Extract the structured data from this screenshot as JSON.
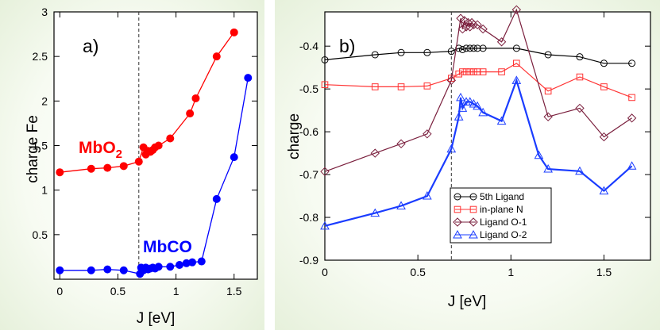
{
  "chart_data": [
    {
      "id": "a",
      "type": "line",
      "panel_label": "a)",
      "xlabel": "J [eV]",
      "ylabel": "charge Fe",
      "xlim": [
        -0.05,
        1.7
      ],
      "ylim": [
        0,
        3
      ],
      "xticks": [
        0,
        0.5,
        1,
        1.5
      ],
      "xtick_labels": [
        "0",
        "0.5",
        "1",
        "1.5"
      ],
      "yticks": [
        0.5,
        1,
        1.5,
        2,
        2.5,
        3
      ],
      "ytick_labels": [
        "0.5",
        "1",
        "1.5",
        "2",
        "2.5",
        "3"
      ],
      "marker_line": {
        "x": 0.68,
        "style": "dashed"
      },
      "series": [
        {
          "name": "MbO2",
          "label_main": "MbO",
          "label_sub": "2",
          "color": "#ff0000",
          "marker": "filled-circle",
          "x": [
            0,
            0.27,
            0.41,
            0.55,
            0.68,
            0.72,
            0.74,
            0.76,
            0.78,
            0.8,
            0.82,
            0.85,
            0.95,
            1.12,
            1.17,
            1.35,
            1.5
          ],
          "y": [
            1.2,
            1.24,
            1.25,
            1.27,
            1.32,
            1.48,
            1.4,
            1.44,
            1.43,
            1.45,
            1.48,
            1.5,
            1.58,
            1.86,
            2.03,
            2.5,
            2.77
          ]
        },
        {
          "name": "MbCO",
          "label_main": "MbCO",
          "label_sub": "",
          "color": "#0000ff",
          "marker": "filled-circle",
          "x": [
            0,
            0.27,
            0.41,
            0.55,
            0.69,
            0.7,
            0.72,
            0.74,
            0.76,
            0.78,
            0.8,
            0.82,
            0.85,
            0.95,
            1.03,
            1.09,
            1.14,
            1.22,
            1.35,
            1.5,
            1.62
          ],
          "y": [
            0.1,
            0.1,
            0.11,
            0.1,
            0.06,
            0.13,
            0.1,
            0.13,
            0.11,
            0.12,
            0.13,
            0.12,
            0.14,
            0.14,
            0.16,
            0.18,
            0.19,
            0.2,
            0.9,
            1.37,
            2.26
          ]
        }
      ]
    },
    {
      "id": "b",
      "type": "line",
      "panel_label": "b)",
      "xlabel": "J [eV]",
      "ylabel": "charge",
      "xlim": [
        0,
        1.75
      ],
      "ylim": [
        -0.9,
        -0.32
      ],
      "xticks": [
        0,
        0.5,
        1,
        1.5
      ],
      "xtick_labels": [
        "0",
        "0.5",
        "1",
        "1.5"
      ],
      "yticks": [
        -0.9,
        -0.8,
        -0.7,
        -0.6,
        -0.5,
        -0.4
      ],
      "ytick_labels": [
        "-0.9",
        "-0.8",
        "-0.7",
        "-0.6",
        "-0.5",
        "-0.4"
      ],
      "marker_line": {
        "x": 0.68,
        "style": "dashed"
      },
      "legend_position": "lower-right",
      "series": [
        {
          "name": "5th Ligand",
          "color": "#000000",
          "marker": "open-circle",
          "x": [
            0,
            0.27,
            0.41,
            0.55,
            0.68,
            0.72,
            0.74,
            0.76,
            0.78,
            0.8,
            0.82,
            0.85,
            1.03,
            1.2,
            1.37,
            1.5,
            1.65
          ],
          "y": [
            -0.432,
            -0.42,
            -0.415,
            -0.415,
            -0.412,
            -0.405,
            -0.408,
            -0.405,
            -0.405,
            -0.405,
            -0.405,
            -0.405,
            -0.405,
            -0.42,
            -0.425,
            -0.44,
            -0.44
          ]
        },
        {
          "name": "in-plane N",
          "color": "#ff3333",
          "marker": "open-square",
          "x": [
            0,
            0.27,
            0.41,
            0.55,
            0.68,
            0.72,
            0.74,
            0.76,
            0.78,
            0.8,
            0.82,
            0.85,
            0.95,
            1.03,
            1.2,
            1.37,
            1.5,
            1.65
          ],
          "y": [
            -0.49,
            -0.495,
            -0.495,
            -0.493,
            -0.475,
            -0.465,
            -0.46,
            -0.46,
            -0.46,
            -0.46,
            -0.46,
            -0.46,
            -0.46,
            -0.44,
            -0.505,
            -0.472,
            -0.495,
            -0.52
          ]
        },
        {
          "name": "Ligand O-1",
          "color": "#7a1f3d",
          "marker": "open-diamond",
          "x": [
            0,
            0.27,
            0.41,
            0.55,
            0.68,
            0.73,
            0.74,
            0.75,
            0.76,
            0.77,
            0.78,
            0.79,
            0.8,
            0.82,
            0.85,
            0.95,
            1.03,
            1.2,
            1.37,
            1.5,
            1.65
          ],
          "y": [
            -0.693,
            -0.65,
            -0.628,
            -0.605,
            -0.48,
            -0.335,
            -0.36,
            -0.34,
            -0.355,
            -0.345,
            -0.355,
            -0.345,
            -0.35,
            -0.35,
            -0.36,
            -0.39,
            -0.315,
            -0.565,
            -0.545,
            -0.612,
            -0.568
          ]
        },
        {
          "name": "Ligand O-2",
          "color": "#1a3cff",
          "marker": "open-triangle",
          "x": [
            0,
            0.27,
            0.41,
            0.55,
            0.68,
            0.72,
            0.73,
            0.74,
            0.76,
            0.78,
            0.8,
            0.82,
            0.85,
            0.95,
            1.03,
            1.15,
            1.2,
            1.37,
            1.5,
            1.65
          ],
          "y": [
            -0.82,
            -0.79,
            -0.773,
            -0.75,
            -0.64,
            -0.565,
            -0.52,
            -0.545,
            -0.53,
            -0.53,
            -0.535,
            -0.54,
            -0.555,
            -0.575,
            -0.48,
            -0.655,
            -0.687,
            -0.692,
            -0.738,
            -0.68
          ]
        }
      ]
    }
  ]
}
